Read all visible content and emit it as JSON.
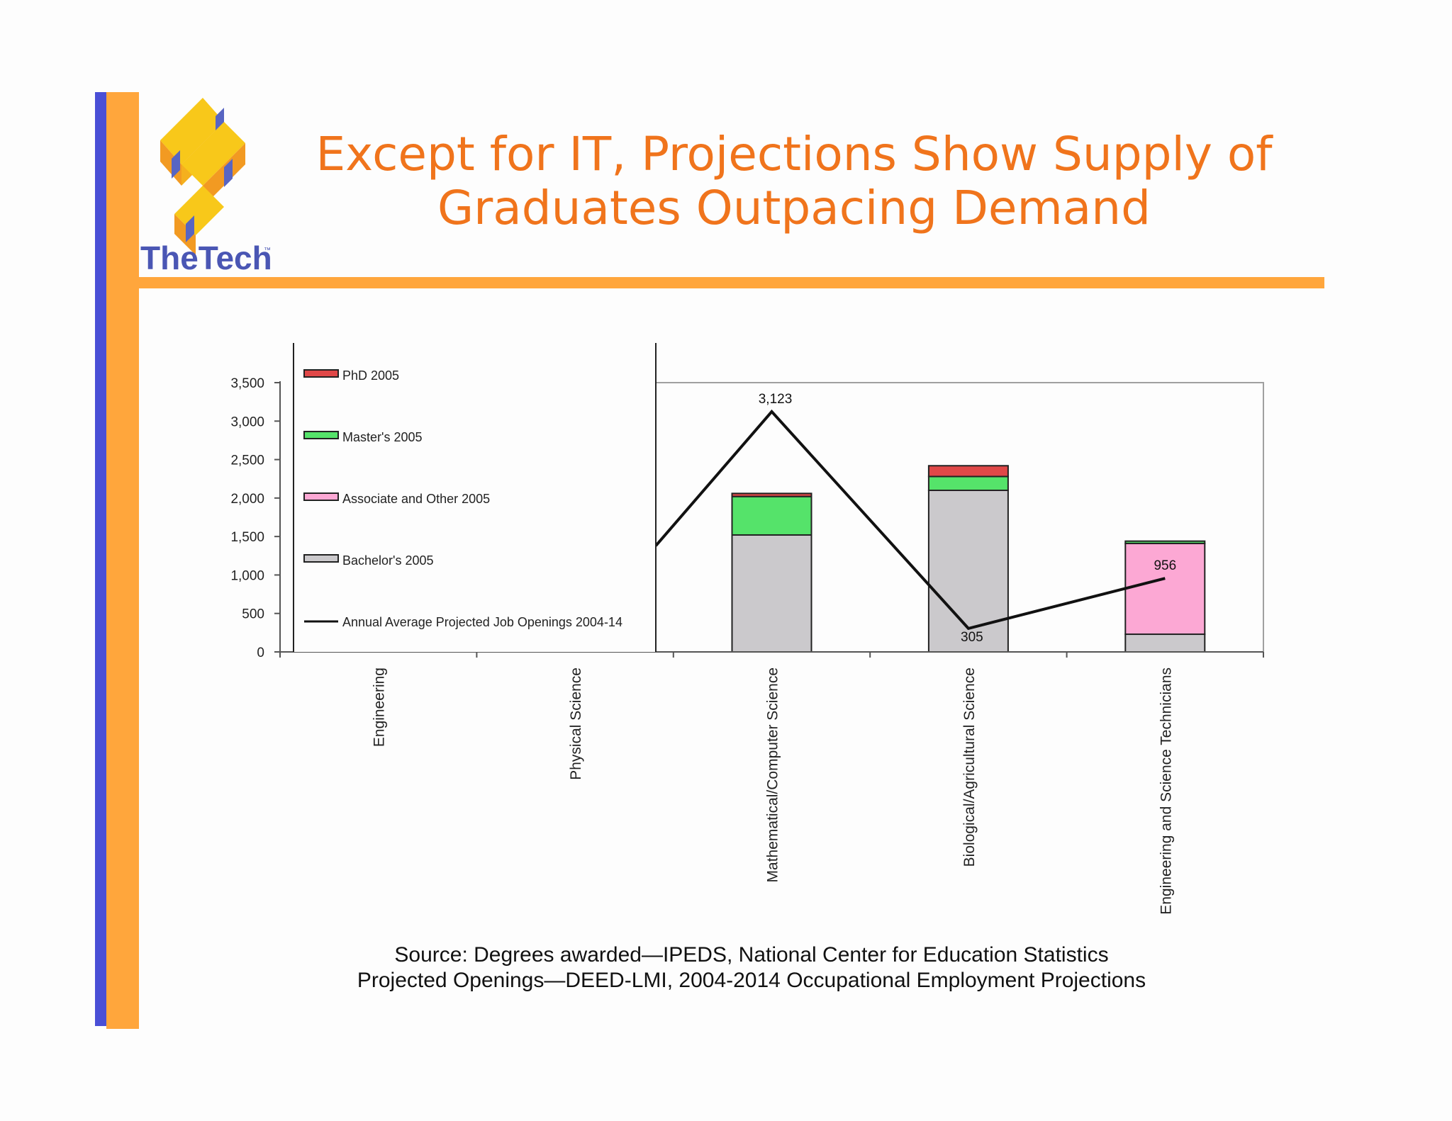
{
  "logo": {
    "text": "TheTech",
    "tm": "™"
  },
  "title": {
    "line1": "Except for IT, Projections Show Supply of",
    "line2": "Graduates Outpacing Demand"
  },
  "chart_data": {
    "type": "bar",
    "stacked": true,
    "categories": [
      "Engineering",
      "Physical Science",
      "Mathematical/Computer Science",
      "Biological/Agricultural Science",
      "Engineering and Science Technicians"
    ],
    "series": [
      {
        "name": "Bachelor's 2005",
        "color": "#cbc9cc",
        "values": [
          null,
          null,
          1520,
          2100,
          230
        ]
      },
      {
        "name": "Associate and Other 2005",
        "color": "#fca8d4",
        "values": [
          null,
          null,
          0,
          0,
          1180
        ]
      },
      {
        "name": "Master's 2005",
        "color": "#55e36a",
        "values": [
          null,
          null,
          500,
          180,
          30
        ]
      },
      {
        "name": "PhD   2005",
        "color": "#e04848",
        "values": [
          null,
          null,
          40,
          140,
          0
        ]
      }
    ],
    "line": {
      "name": "Annual Average Projected Job Openings 2004-14",
      "color": "#111111",
      "values": [
        null,
        1380,
        3123,
        305,
        956
      ],
      "labels": [
        "",
        "",
        "3,123",
        "305",
        "956"
      ]
    },
    "y_ticks": [
      "0",
      "500",
      "1,000",
      "1,500",
      "2,000",
      "2,500",
      "3,000",
      "3,500"
    ],
    "ylim": [
      0,
      3500
    ],
    "legend_order": [
      "PhD   2005",
      "Master's 2005",
      "Associate and Other 2005",
      "Bachelor's 2005",
      "Annual Average Projected Job Openings 2004-14"
    ],
    "legend_position": "top-left"
  },
  "source": {
    "line1": "Source: Degrees awarded—IPEDS, National Center for Education Statistics",
    "line2": "Projected Openings—DEED-LMI, 2004-2014 Occupational Employment Projections"
  }
}
